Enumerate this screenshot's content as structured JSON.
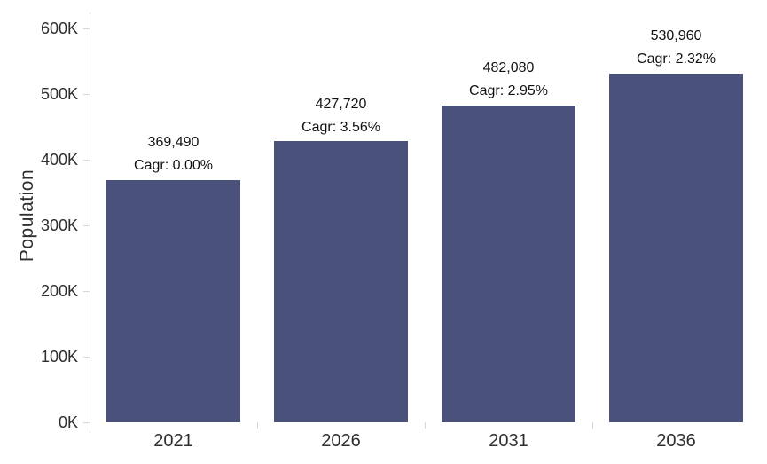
{
  "chart_data": {
    "type": "bar",
    "title": "",
    "xlabel": "",
    "ylabel": "Population",
    "categories": [
      "2021",
      "2026",
      "2031",
      "2036"
    ],
    "values": [
      369490,
      427720,
      482080,
      530960
    ],
    "value_labels": [
      "369,490",
      "427,720",
      "482,080",
      "530,960"
    ],
    "cagr_labels": [
      "Cagr: 0.00%",
      "Cagr: 3.56%",
      "Cagr: 2.95%",
      "Cagr: 2.32%"
    ],
    "y_tick_labels": [
      "0K",
      "100K",
      "200K",
      "300K",
      "400K",
      "500K",
      "600K"
    ],
    "y_tick_interval": 100000,
    "ylim": [
      0,
      600000
    ],
    "grid": false,
    "legend": "none",
    "colors": {
      "bar": "#4A527C",
      "axis": "#D6D6D6",
      "tick_text": "#2E2E2E",
      "label_text": "#111111",
      "background": "#FFFFFF"
    }
  }
}
